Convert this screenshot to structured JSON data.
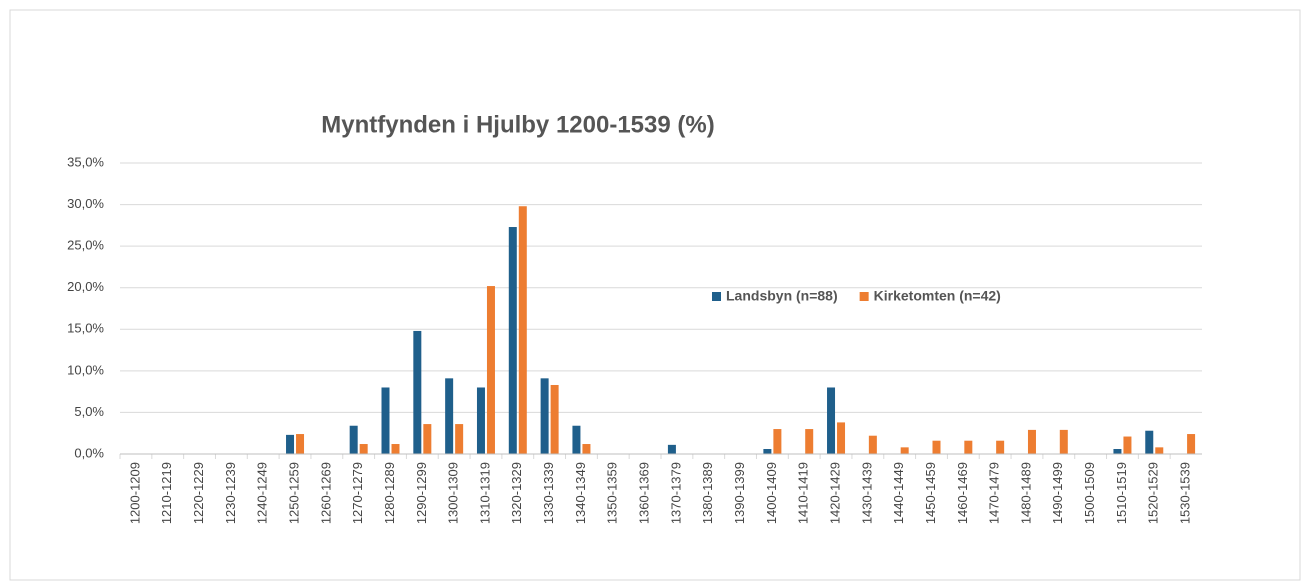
{
  "chart_data": {
    "type": "bar",
    "title": "Myntfynden i Hjulby 1200-1539 (%)",
    "categories": [
      "1200-1209",
      "1210-1219",
      "1220-1229",
      "1230-1239",
      "1240-1249",
      "1250-1259",
      "1260-1269",
      "1270-1279",
      "1280-1289",
      "1290-1299",
      "1300-1309",
      "1310-1319",
      "1320-1329",
      "1330-1339",
      "1340-1349",
      "1350-1359",
      "1360-1369",
      "1370-1379",
      "1380-1389",
      "1390-1399",
      "1400-1409",
      "1410-1419",
      "1420-1429",
      "1430-1439",
      "1440-1449",
      "1450-1459",
      "1460-1469",
      "1470-1479",
      "1480-1489",
      "1490-1499",
      "1500-1509",
      "1510-1519",
      "1520-1529",
      "1530-1539"
    ],
    "series": [
      {
        "name": "Landsbyn (n=88)",
        "color": "#1f5f8b",
        "values": [
          0,
          0,
          0,
          0,
          0,
          2.3,
          0,
          3.4,
          8.0,
          14.8,
          9.1,
          8.0,
          27.3,
          9.1,
          3.4,
          0,
          0,
          1.1,
          0,
          0,
          0.6,
          0,
          8.0,
          0,
          0,
          0,
          0,
          0,
          0,
          0,
          0,
          0.6,
          2.8,
          0
        ]
      },
      {
        "name": "Kirketomten (n=42)",
        "color": "#ed7d31",
        "values": [
          0,
          0,
          0,
          0,
          0,
          2.4,
          0,
          1.2,
          1.2,
          3.6,
          3.6,
          20.2,
          29.8,
          8.3,
          1.2,
          0,
          0,
          0,
          0,
          0,
          3.0,
          3.0,
          3.8,
          2.2,
          0.8,
          1.6,
          1.6,
          1.6,
          2.9,
          2.9,
          0,
          2.1,
          0.8,
          2.4
        ]
      }
    ],
    "ylim": [
      0,
      35
    ],
    "yticks": [
      {
        "value": 0,
        "label": "0,0%"
      },
      {
        "value": 5,
        "label": "5,0%"
      },
      {
        "value": 10,
        "label": "10,0%"
      },
      {
        "value": 15,
        "label": "15,0%"
      },
      {
        "value": 20,
        "label": "20,0%"
      },
      {
        "value": 25,
        "label": "25,0%"
      },
      {
        "value": 30,
        "label": "30,0%"
      },
      {
        "value": 35,
        "label": "35,0%"
      }
    ],
    "grid": true
  }
}
